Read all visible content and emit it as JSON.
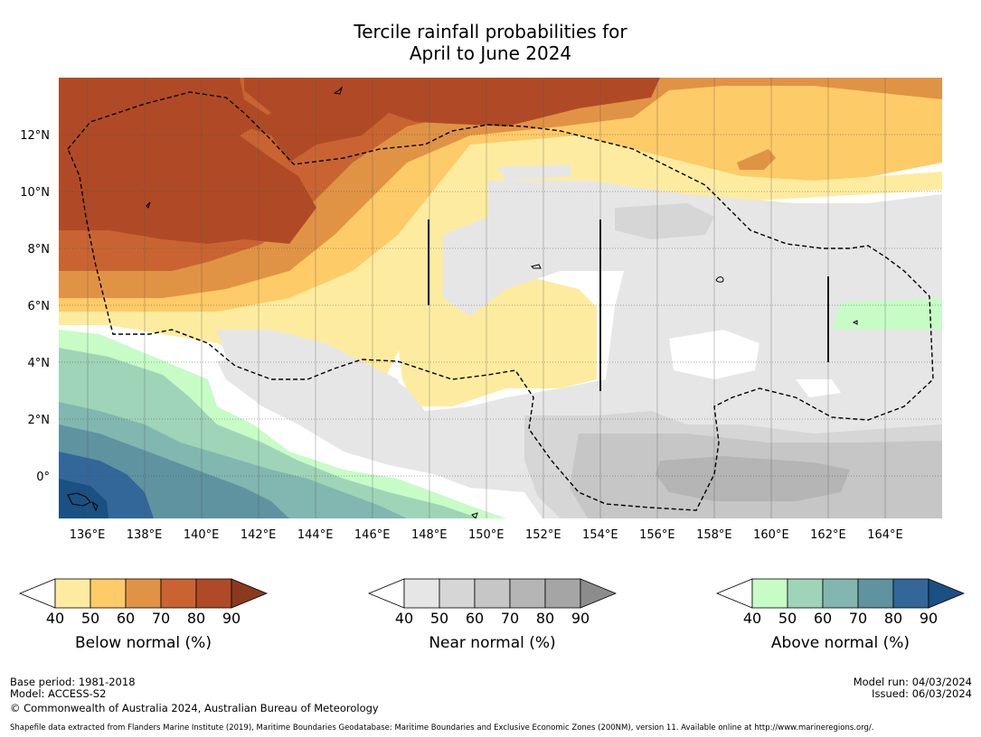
{
  "title_line1": "Tercile rainfall probabilities for",
  "title_line2": "April to June 2024",
  "map": {
    "lon_range": [
      135,
      166
    ],
    "lat_range": [
      -1.5,
      14
    ],
    "lon_ticks": [
      {
        "value": 136,
        "label": "136°E"
      },
      {
        "value": 138,
        "label": "138°E"
      },
      {
        "value": 140,
        "label": "140°E"
      },
      {
        "value": 142,
        "label": "142°E"
      },
      {
        "value": 144,
        "label": "144°E"
      },
      {
        "value": 146,
        "label": "146°E"
      },
      {
        "value": 148,
        "label": "148°E"
      },
      {
        "value": 150,
        "label": "150°E"
      },
      {
        "value": 152,
        "label": "152°E"
      },
      {
        "value": 154,
        "label": "154°E"
      },
      {
        "value": 156,
        "label": "156°E"
      },
      {
        "value": 158,
        "label": "158°E"
      },
      {
        "value": 160,
        "label": "160°E"
      },
      {
        "value": 162,
        "label": "162°E"
      },
      {
        "value": 164,
        "label": "164°E"
      }
    ],
    "lat_ticks": [
      {
        "value": 12,
        "label": "12°N"
      },
      {
        "value": 10,
        "label": "10°N"
      },
      {
        "value": 8,
        "label": "8°N"
      },
      {
        "value": 6,
        "label": "6°N"
      },
      {
        "value": 4,
        "label": "4°N"
      },
      {
        "value": 2,
        "label": "2°N"
      },
      {
        "value": 0,
        "label": "0°"
      }
    ],
    "colors": {
      "below": [
        "#fdeca0",
        "#fdcb68",
        "#e19345",
        "#c96432",
        "#b04a26",
        "#8c3a1e"
      ],
      "near": [
        "#e6e6e6",
        "#d6d6d6",
        "#c6c6c6",
        "#b5b5b5",
        "#a5a5a5",
        "#8c8c8c"
      ],
      "above": [
        "#c7fcc7",
        "#9fd4b8",
        "#82b6b0",
        "#5f93a0",
        "#336699",
        "#1a5082"
      ]
    }
  },
  "colorbars": [
    {
      "name": "below",
      "title": "Below normal (%)",
      "ticks": [
        "40",
        "50",
        "60",
        "70",
        "80",
        "90"
      ]
    },
    {
      "name": "near",
      "title": "Near normal (%)",
      "ticks": [
        "40",
        "50",
        "60",
        "70",
        "80",
        "90"
      ]
    },
    {
      "name": "above",
      "title": "Above normal (%)",
      "ticks": [
        "40",
        "50",
        "60",
        "70",
        "80",
        "90"
      ]
    }
  ],
  "footer": {
    "base_period": "Base period: 1981-2018",
    "model": "Model: ACCESS-S2",
    "copyright": "© Commonwealth of Australia 2024, Australian Bureau of Meteorology",
    "shapefile": "Shapefile data extracted from Flanders Marine Institute (2019), Maritime Boundaries Geodatabase: Maritime Boundaries and Exclusive Economic Zones (200NM), version 11. Available online at http://www.marineregions.org/.",
    "model_run": "Model run: 04/03/2024",
    "issued": "Issued: 06/03/2024"
  }
}
